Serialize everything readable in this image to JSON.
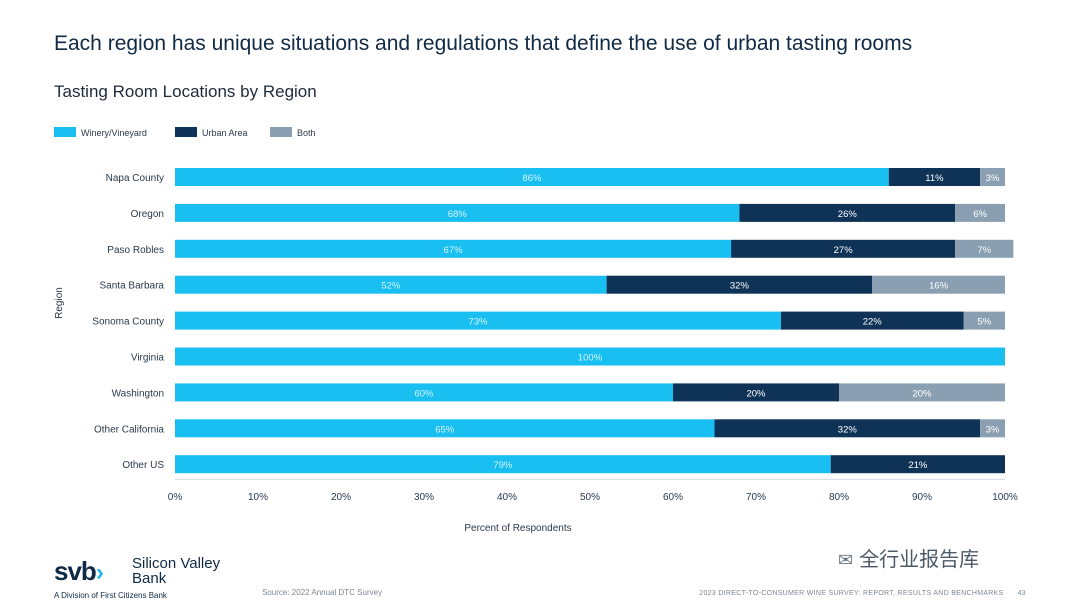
{
  "header": {
    "headline": "Each region has unique situations and regulations that define the use of urban tasting rooms"
  },
  "chart_data": {
    "type": "bar",
    "orientation": "horizontal",
    "stacked": true,
    "title": "Tasting Room Locations by Region",
    "xlabel": "Percent of Respondents",
    "ylabel": "Region",
    "xlim": [
      0,
      100
    ],
    "xticks": [
      "0%",
      "10%",
      "20%",
      "30%",
      "40%",
      "50%",
      "60%",
      "70%",
      "80%",
      "90%",
      "100%"
    ],
    "legend_position": "top-left",
    "categories": [
      "Napa County",
      "Oregon",
      "Paso Robles",
      "Santa Barbara",
      "Sonoma County",
      "Virginia",
      "Washington",
      "Other California",
      "Other US"
    ],
    "series": [
      {
        "name": "Winery/Vineyard",
        "color": "#19bff0",
        "label_color": "#d6f3ff",
        "values": [
          86,
          68,
          67,
          52,
          73,
          100,
          60,
          65,
          79
        ]
      },
      {
        "name": "Urban Area",
        "color": "#0e3357",
        "label_color": "#ffffff",
        "values": [
          11,
          26,
          27,
          32,
          22,
          0,
          20,
          32,
          21
        ]
      },
      {
        "name": "Both",
        "color": "#8a9fb1",
        "label_color": "#ffffff",
        "values": [
          3,
          6,
          7,
          16,
          5,
          0,
          20,
          3,
          0
        ]
      }
    ]
  },
  "footer": {
    "logo_mark": "svb",
    "logo_chevron": "›",
    "logo_name": "Silicon Valley Bank",
    "logo_sub": "A Division of First Citizens Bank",
    "source": "Source: 2022 Annual DTC Survey",
    "report": "2023 DIRECT-TO-CONSUMER WINE SURVEY: REPORT, RESULTS AND BENCHMARKS",
    "page": "43",
    "watermark": "全行业报告库",
    "watermark_icon": "wechat-icon"
  }
}
